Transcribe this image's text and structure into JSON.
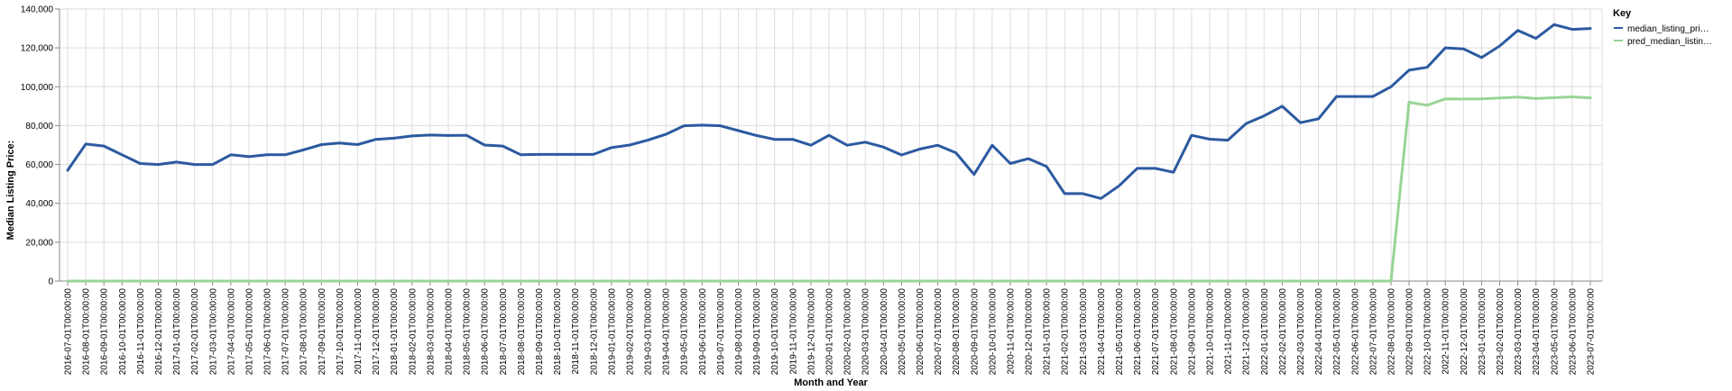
{
  "chart_data": {
    "type": "line",
    "title": "",
    "xlabel": "Month and Year",
    "ylabel": "Median Listing Price:",
    "ylim": [
      0,
      140000
    ],
    "y_ticks": [
      "0",
      "20,000",
      "40,000",
      "60,000",
      "80,000",
      "100,000",
      "120,000",
      "140,000"
    ],
    "y_tick_values": [
      0,
      20000,
      40000,
      60000,
      80000,
      100000,
      120000,
      140000
    ],
    "grid": true,
    "legend": {
      "title": "Key",
      "position": "top-right",
      "entries": [
        "median_listing_pri…",
        "pred_median_listin…"
      ]
    },
    "colors": {
      "median_listing_price": "#2c5aa0",
      "pred_median_listing_price": "#98d594",
      "grid": "#dddddd",
      "axis": "#888888"
    },
    "categories": [
      "2016-07-01T00:00:00",
      "2016-08-01T00:00:00",
      "2016-09-01T00:00:00",
      "2016-10-01T00:00:00",
      "2016-11-01T00:00:00",
      "2016-12-01T00:00:00",
      "2017-01-01T00:00:00",
      "2017-02-01T00:00:00",
      "2017-03-01T00:00:00",
      "2017-04-01T00:00:00",
      "2017-05-01T00:00:00",
      "2017-06-01T00:00:00",
      "2017-07-01T00:00:00",
      "2017-08-01T00:00:00",
      "2017-09-01T00:00:00",
      "2017-10-01T00:00:00",
      "2017-11-01T00:00:00",
      "2017-12-01T00:00:00",
      "2018-01-01T00:00:00",
      "2018-02-01T00:00:00",
      "2018-03-01T00:00:00",
      "2018-04-01T00:00:00",
      "2018-05-01T00:00:00",
      "2018-06-01T00:00:00",
      "2018-07-01T00:00:00",
      "2018-08-01T00:00:00",
      "2018-09-01T00:00:00",
      "2018-10-01T00:00:00",
      "2018-11-01T00:00:00",
      "2018-12-01T00:00:00",
      "2019-01-01T00:00:00",
      "2019-02-01T00:00:00",
      "2019-03-01T00:00:00",
      "2019-04-01T00:00:00",
      "2019-05-01T00:00:00",
      "2019-06-01T00:00:00",
      "2019-07-01T00:00:00",
      "2019-08-01T00:00:00",
      "2019-09-01T00:00:00",
      "2019-10-01T00:00:00",
      "2019-11-01T00:00:00",
      "2019-12-01T00:00:00",
      "2020-01-01T00:00:00",
      "2020-02-01T00:00:00",
      "2020-03-01T00:00:00",
      "2020-04-01T00:00:00",
      "2020-05-01T00:00:00",
      "2020-06-01T00:00:00",
      "2020-07-01T00:00:00",
      "2020-08-01T00:00:00",
      "2020-09-01T00:00:00",
      "2020-10-01T00:00:00",
      "2020-11-01T00:00:00",
      "2020-12-01T00:00:00",
      "2021-01-01T00:00:00",
      "2021-02-01T00:00:00",
      "2021-03-01T00:00:00",
      "2021-04-01T00:00:00",
      "2021-05-01T00:00:00",
      "2021-06-01T00:00:00",
      "2021-07-01T00:00:00",
      "2021-08-01T00:00:00",
      "2021-09-01T00:00:00",
      "2021-10-01T00:00:00",
      "2021-11-01T00:00:00",
      "2021-12-01T00:00:00",
      "2022-01-01T00:00:00",
      "2022-02-01T00:00:00",
      "2022-03-01T00:00:00",
      "2022-04-01T00:00:00",
      "2022-05-01T00:00:00",
      "2022-06-01T00:00:00",
      "2022-07-01T00:00:00",
      "2022-08-01T00:00:00",
      "2022-09-01T00:00:00",
      "2022-10-01T00:00:00",
      "2022-11-01T00:00:00",
      "2022-12-01T00:00:00",
      "2023-01-01T00:00:00",
      "2023-02-01T00:00:00",
      "2023-03-01T00:00:00",
      "2023-04-01T00:00:00",
      "2023-05-01T00:00:00",
      "2023-06-01T00:00:00",
      "2023-07-01T00:00:00"
    ],
    "series": [
      {
        "name": "median_listing_pri…",
        "values": [
          57000,
          70500,
          69500,
          65000,
          60500,
          60000,
          61250,
          60000,
          60000,
          65000,
          64000,
          65000,
          65000,
          67500,
          70250,
          71000,
          70250,
          72900,
          73500,
          74700,
          75150,
          74900,
          75000,
          70000,
          69500,
          65000,
          65200,
          65200,
          65200,
          65200,
          68700,
          70000,
          72500,
          75500,
          79900,
          80250,
          79900,
          77400,
          74900,
          72900,
          72900,
          69900,
          75000,
          69900,
          71500,
          69000,
          64900,
          67900,
          69900,
          66000,
          54900,
          69900,
          60500,
          63000,
          59000,
          45000,
          45000,
          42500,
          49000,
          58000,
          58000,
          56000,
          75000,
          73000,
          72500,
          81000,
          85000,
          90000,
          81500,
          83500,
          95000,
          95000,
          95000,
          100000,
          108500,
          110000,
          120000,
          119500,
          115000,
          121000,
          129000,
          124900,
          132000,
          129500,
          130000
        ]
      },
      {
        "name": "pred_median_listin…",
        "values": [
          0,
          0,
          0,
          0,
          0,
          0,
          0,
          0,
          0,
          0,
          0,
          0,
          0,
          0,
          0,
          0,
          0,
          0,
          0,
          0,
          0,
          0,
          0,
          0,
          0,
          0,
          0,
          0,
          0,
          0,
          0,
          0,
          0,
          0,
          0,
          0,
          0,
          0,
          0,
          0,
          0,
          0,
          0,
          0,
          0,
          0,
          0,
          0,
          0,
          0,
          0,
          0,
          0,
          0,
          0,
          0,
          0,
          0,
          0,
          0,
          0,
          0,
          0,
          0,
          0,
          0,
          0,
          0,
          0,
          0,
          0,
          0,
          0,
          0,
          92000,
          90500,
          93800,
          93700,
          93800,
          94200,
          94700,
          93900,
          94400,
          94800,
          94300
        ]
      }
    ]
  }
}
